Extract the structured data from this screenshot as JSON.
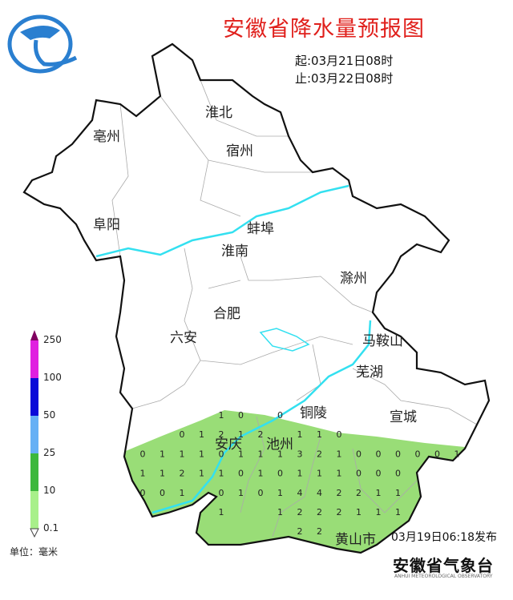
{
  "title": "安徽省降水量预报图",
  "period": {
    "start": "起:03月21日08时",
    "end": "止:03月22日08时"
  },
  "publish_time": "03月19日06:18发布",
  "organization": "安徽省气象台",
  "organization_sub": "ANHUI METEOROLOGICAL OBSERVATORY",
  "legend": {
    "unit": "单位：毫米",
    "ticks": [
      "0.1",
      "10",
      "25",
      "50",
      "100",
      "250"
    ],
    "colors": [
      "#a8f08a",
      "#3cb83c",
      "#66b0f5",
      "#0a0ad8",
      "#e020e0",
      "#800060"
    ]
  },
  "colors": {
    "map_border": "#111111",
    "rivers": "#33e0f0",
    "rain_area": "#99dd77",
    "title": "#e0201c"
  },
  "cities": [
    "淮北",
    "亳州",
    "宿州",
    "阜阳",
    "蚌埠",
    "淮南",
    "滁州",
    "合肥",
    "六安",
    "马鞍山",
    "芜湖",
    "铜陵",
    "宣城",
    "安庆",
    "池州",
    "黄山市"
  ],
  "grid_values": [
    {
      "row": 0,
      "cells": [
        [
          4,
          "1"
        ],
        [
          5,
          "0"
        ],
        [
          7,
          "0"
        ]
      ]
    },
    {
      "row": 1,
      "cells": [
        [
          2,
          "0"
        ],
        [
          3,
          "1"
        ],
        [
          4,
          "2"
        ],
        [
          5,
          "1"
        ],
        [
          6,
          "2"
        ],
        [
          8,
          "1"
        ],
        [
          9,
          "1"
        ],
        [
          10,
          "0"
        ]
      ]
    },
    {
      "row": 2,
      "cells": [
        [
          0,
          "0"
        ],
        [
          1,
          "1"
        ],
        [
          2,
          "1"
        ],
        [
          3,
          "1"
        ],
        [
          4,
          "0"
        ],
        [
          5,
          "1"
        ],
        [
          6,
          "1"
        ],
        [
          7,
          "1"
        ],
        [
          8,
          "3"
        ],
        [
          9,
          "2"
        ],
        [
          10,
          "1"
        ],
        [
          11,
          "0"
        ],
        [
          12,
          "0"
        ],
        [
          13,
          "0"
        ],
        [
          14,
          "0"
        ],
        [
          15,
          "0"
        ],
        [
          16,
          "1"
        ]
      ]
    },
    {
      "row": 3,
      "cells": [
        [
          0,
          "1"
        ],
        [
          1,
          "1"
        ],
        [
          2,
          "2"
        ],
        [
          3,
          "1"
        ],
        [
          4,
          "1"
        ],
        [
          5,
          "0"
        ],
        [
          6,
          "1"
        ],
        [
          7,
          "0"
        ],
        [
          8,
          "1"
        ],
        [
          9,
          "1"
        ],
        [
          10,
          "1"
        ],
        [
          11,
          "0"
        ],
        [
          12,
          "0"
        ],
        [
          13,
          "0"
        ]
      ]
    },
    {
      "row": 4,
      "cells": [
        [
          0,
          "0"
        ],
        [
          1,
          "0"
        ],
        [
          2,
          "1"
        ],
        [
          4,
          "0"
        ],
        [
          5,
          "1"
        ],
        [
          6,
          "0"
        ],
        [
          7,
          "1"
        ],
        [
          8,
          "4"
        ],
        [
          9,
          "4"
        ],
        [
          10,
          "2"
        ],
        [
          11,
          "2"
        ],
        [
          12,
          "1"
        ],
        [
          13,
          "1"
        ]
      ]
    },
    {
      "row": 5,
      "cells": [
        [
          4,
          "1"
        ],
        [
          7,
          "1"
        ],
        [
          8,
          "2"
        ],
        [
          9,
          "2"
        ],
        [
          10,
          "2"
        ],
        [
          11,
          "1"
        ],
        [
          12,
          "1"
        ],
        [
          13,
          "1"
        ]
      ]
    },
    {
      "row": 6,
      "cells": [
        [
          8,
          "2"
        ],
        [
          9,
          "2"
        ]
      ]
    }
  ]
}
